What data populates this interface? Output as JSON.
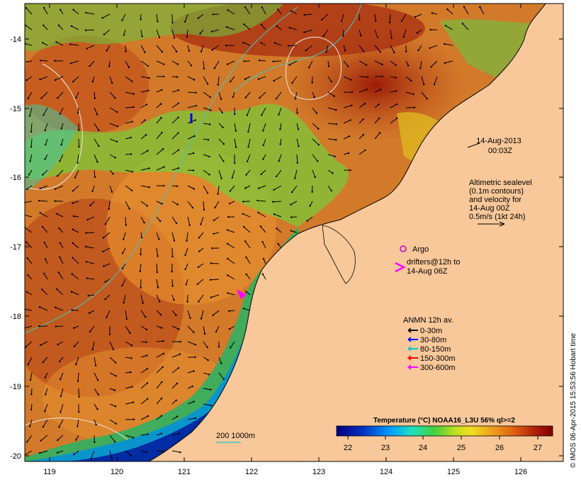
{
  "map": {
    "date": "14-Aug-2013",
    "time": "00:03Z",
    "lon_ticks": [
      "119",
      "120",
      "121",
      "122",
      "123",
      "124",
      "125",
      "126"
    ],
    "lat_ticks": [
      "-14",
      "-15",
      "-16",
      "-17",
      "-18",
      "-19",
      "-20"
    ],
    "altimetry_lines": [
      "Altimetric sealevel",
      "(0.1m contours)",
      "and velocity for",
      "14-Aug 00Z",
      "0.5m/s (1kt 24h)"
    ],
    "argo_label": "Argo",
    "drifters_lines": [
      "drifters@12h to",
      "14-Aug 06Z"
    ],
    "anmn_title": "ANMN 12h av.",
    "anmn_legend": [
      {
        "label": "0-30m",
        "color": "#000000"
      },
      {
        "label": "30-80m",
        "color": "#0000ff"
      },
      {
        "label": "80-150m",
        "color": "#00cccc"
      },
      {
        "label": "150-300m",
        "color": "#ff0000"
      },
      {
        "label": "300-600m",
        "color": "#ff00ff"
      }
    ],
    "isobath_label": "200  1000m",
    "colorbar_title": "Temperature (°C) NOAA16_L3U 56% ql>=2",
    "colorbar_ticks": [
      "22",
      "23",
      "24",
      "25",
      "26",
      "27"
    ],
    "credit": "© IMOS 06-Apr-2015 15:53:56 Hobart time",
    "colors": {
      "land": "#f8c89a",
      "argo": "#cc00cc",
      "drifter": "#ff00ff",
      "isobath": "#40c8c8"
    }
  }
}
